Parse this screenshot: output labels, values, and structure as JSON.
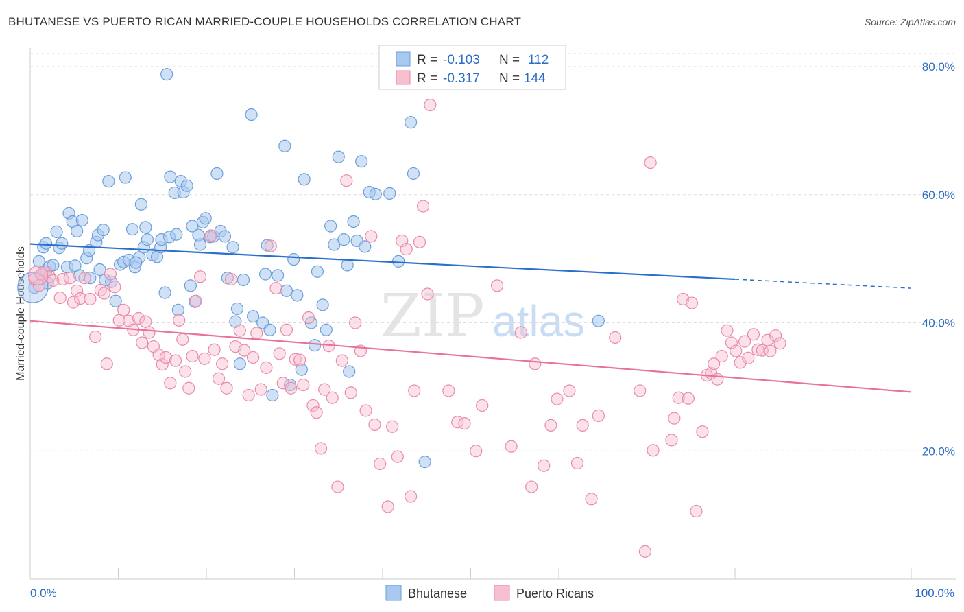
{
  "title": "BHUTANESE VS PUERTO RICAN MARRIED-COUPLE HOUSEHOLDS CORRELATION CHART",
  "source": "Source: ZipAtlas.com",
  "watermark": {
    "zip": "ZIP",
    "atlas": "atlas"
  },
  "colors": {
    "blue_fill": "#a9c8ef",
    "blue_stroke": "#6a9fdc",
    "blue_line": "#2b6fcc",
    "pink_fill": "#f7bfd0",
    "pink_stroke": "#ea8aaa",
    "pink_line": "#e8729b",
    "grid": "#dddddd",
    "axis_text": "#2b6cc4"
  },
  "legend": {
    "rows": [
      {
        "r_label": "R =",
        "r_value": "-0.103",
        "n_label": "N =",
        "n_value": "112"
      },
      {
        "r_label": "R =",
        "r_value": "-0.317",
        "n_label": "N =",
        "n_value": "144"
      }
    ]
  },
  "bottom_legend": [
    "Bhutanese",
    "Puerto Ricans"
  ],
  "chart_data": {
    "type": "scatter",
    "xlabel": "",
    "ylabel": "Married-couple Households",
    "xlim": [
      0,
      100
    ],
    "ylim": [
      0,
      82
    ],
    "x_tick_labels": [
      "0.0%",
      "100.0%"
    ],
    "y_tick_labels": [
      "20.0%",
      "40.0%",
      "60.0%",
      "80.0%"
    ],
    "y_ticks": [
      20,
      40,
      60,
      80
    ],
    "grid": true,
    "legend_placement": "top-center",
    "series": [
      {
        "name": "Bhutanese",
        "trend": {
          "x0": 0,
          "y0": 52.3,
          "x1": 80,
          "y1": 46.8,
          "dash_to_x": 100,
          "dash_to_y": 45.4
        },
        "points": [
          [
            0.5,
            45.5
          ],
          [
            1.0,
            49.6
          ],
          [
            1.2,
            47.5
          ],
          [
            1.5,
            51.8
          ],
          [
            1.8,
            52.4
          ],
          [
            2.2,
            48.8
          ],
          [
            2.6,
            49.0
          ],
          [
            3.0,
            54.2
          ],
          [
            3.3,
            51.7
          ],
          [
            3.6,
            52.4
          ],
          [
            4.2,
            48.7
          ],
          [
            4.4,
            57.1
          ],
          [
            4.8,
            55.8
          ],
          [
            5.1,
            48.9
          ],
          [
            5.3,
            54.3
          ],
          [
            5.6,
            47.4
          ],
          [
            5.9,
            56.0
          ],
          [
            6.4,
            50.1
          ],
          [
            6.7,
            51.3
          ],
          [
            7.5,
            52.6
          ],
          [
            7.7,
            53.7
          ],
          [
            7.9,
            48.3
          ],
          [
            8.3,
            54.5
          ],
          [
            8.5,
            46.7
          ],
          [
            8.9,
            62.1
          ],
          [
            9.2,
            46.4
          ],
          [
            9.7,
            43.4
          ],
          [
            10.2,
            49.1
          ],
          [
            10.6,
            49.5
          ],
          [
            10.8,
            62.7
          ],
          [
            11.2,
            49.8
          ],
          [
            11.6,
            54.6
          ],
          [
            11.9,
            48.7
          ],
          [
            12.4,
            50.2
          ],
          [
            12.6,
            58.5
          ],
          [
            12.9,
            51.8
          ],
          [
            13.1,
            54.9
          ],
          [
            13.3,
            53.0
          ],
          [
            13.9,
            50.6
          ],
          [
            14.4,
            50.3
          ],
          [
            14.8,
            51.8
          ],
          [
            14.9,
            53.0
          ],
          [
            15.3,
            44.7
          ],
          [
            15.5,
            78.8
          ],
          [
            15.8,
            53.4
          ],
          [
            15.9,
            62.8
          ],
          [
            16.4,
            60.3
          ],
          [
            16.6,
            53.8
          ],
          [
            16.8,
            42.0
          ],
          [
            17.1,
            62.1
          ],
          [
            17.4,
            60.4
          ],
          [
            17.8,
            61.4
          ],
          [
            18.2,
            45.8
          ],
          [
            18.4,
            55.1
          ],
          [
            18.7,
            43.3
          ],
          [
            19.1,
            53.7
          ],
          [
            19.3,
            52.2
          ],
          [
            19.6,
            55.7
          ],
          [
            19.9,
            56.3
          ],
          [
            20.4,
            53.4
          ],
          [
            20.8,
            53.5
          ],
          [
            21.2,
            63.3
          ],
          [
            21.6,
            54.3
          ],
          [
            22.1,
            53.5
          ],
          [
            22.4,
            47.0
          ],
          [
            23.0,
            51.8
          ],
          [
            23.3,
            40.2
          ],
          [
            23.5,
            42.2
          ],
          [
            23.8,
            33.6
          ],
          [
            24.2,
            46.7
          ],
          [
            25.1,
            72.5
          ],
          [
            25.3,
            41.0
          ],
          [
            26.4,
            40.0
          ],
          [
            26.7,
            47.6
          ],
          [
            26.9,
            52.1
          ],
          [
            27.2,
            38.9
          ],
          [
            27.5,
            28.7
          ],
          [
            28.1,
            47.4
          ],
          [
            28.9,
            67.6
          ],
          [
            29.1,
            45.0
          ],
          [
            29.5,
            30.3
          ],
          [
            29.9,
            49.9
          ],
          [
            30.3,
            44.3
          ],
          [
            30.8,
            32.7
          ],
          [
            31.1,
            62.4
          ],
          [
            31.9,
            40.0
          ],
          [
            32.3,
            36.5
          ],
          [
            32.6,
            48.0
          ],
          [
            33.2,
            42.8
          ],
          [
            33.6,
            38.9
          ],
          [
            34.1,
            55.1
          ],
          [
            34.5,
            52.2
          ],
          [
            35.0,
            65.9
          ],
          [
            35.6,
            53.0
          ],
          [
            36.0,
            49.0
          ],
          [
            36.2,
            32.4
          ],
          [
            36.7,
            55.8
          ],
          [
            37.1,
            52.8
          ],
          [
            37.6,
            65.2
          ],
          [
            38.0,
            51.9
          ],
          [
            38.5,
            60.4
          ],
          [
            39.2,
            60.1
          ],
          [
            40.8,
            60.2
          ],
          [
            41.8,
            49.6
          ],
          [
            43.2,
            71.3
          ],
          [
            43.5,
            63.3
          ],
          [
            44.8,
            18.3
          ],
          [
            64.5,
            40.3
          ],
          [
            1.6,
            48.0
          ],
          [
            2.0,
            46.2
          ],
          [
            6.8,
            47.0
          ],
          [
            12.0,
            49.4
          ]
        ]
      },
      {
        "name": "Puerto Ricans",
        "trend": {
          "x0": 0,
          "y0": 40.3,
          "x1": 100,
          "y1": 29.2
        },
        "points": [
          [
            0.5,
            46.8
          ],
          [
            1.0,
            45.8
          ],
          [
            1.3,
            47.6
          ],
          [
            1.8,
            48.0
          ],
          [
            2.2,
            47.2
          ],
          [
            2.6,
            46.6
          ],
          [
            3.4,
            43.9
          ],
          [
            3.7,
            46.8
          ],
          [
            4.5,
            47.0
          ],
          [
            4.9,
            43.2
          ],
          [
            5.3,
            45.0
          ],
          [
            5.7,
            43.8
          ],
          [
            6.2,
            47.0
          ],
          [
            6.8,
            43.7
          ],
          [
            7.4,
            37.8
          ],
          [
            8.0,
            45.1
          ],
          [
            8.4,
            44.6
          ],
          [
            8.7,
            33.6
          ],
          [
            9.1,
            47.6
          ],
          [
            9.6,
            45.6
          ],
          [
            10.1,
            40.4
          ],
          [
            10.6,
            42.0
          ],
          [
            11.2,
            40.3
          ],
          [
            11.7,
            38.9
          ],
          [
            12.3,
            40.7
          ],
          [
            12.7,
            36.9
          ],
          [
            13.1,
            40.2
          ],
          [
            13.5,
            38.5
          ],
          [
            14.0,
            36.3
          ],
          [
            14.6,
            35.0
          ],
          [
            15.0,
            33.5
          ],
          [
            15.4,
            34.6
          ],
          [
            15.9,
            30.6
          ],
          [
            16.5,
            34.1
          ],
          [
            16.9,
            40.4
          ],
          [
            17.3,
            37.4
          ],
          [
            17.6,
            32.4
          ],
          [
            18.0,
            29.8
          ],
          [
            18.4,
            34.8
          ],
          [
            18.8,
            43.4
          ],
          [
            19.3,
            47.2
          ],
          [
            19.8,
            34.4
          ],
          [
            20.5,
            53.6
          ],
          [
            20.9,
            35.8
          ],
          [
            21.4,
            31.3
          ],
          [
            21.8,
            33.6
          ],
          [
            22.3,
            29.8
          ],
          [
            22.8,
            46.8
          ],
          [
            23.3,
            36.3
          ],
          [
            23.8,
            38.8
          ],
          [
            24.3,
            35.7
          ],
          [
            24.8,
            28.7
          ],
          [
            25.3,
            34.6
          ],
          [
            25.7,
            38.4
          ],
          [
            26.2,
            29.6
          ],
          [
            26.8,
            33.0
          ],
          [
            27.3,
            52.0
          ],
          [
            27.9,
            45.4
          ],
          [
            28.3,
            35.2
          ],
          [
            28.7,
            30.6
          ],
          [
            29.1,
            38.9
          ],
          [
            29.6,
            29.8
          ],
          [
            30.1,
            34.3
          ],
          [
            30.6,
            34.2
          ],
          [
            31.0,
            30.3
          ],
          [
            31.6,
            40.8
          ],
          [
            32.1,
            27.1
          ],
          [
            32.5,
            26.0
          ],
          [
            33.0,
            20.4
          ],
          [
            33.4,
            29.6
          ],
          [
            33.9,
            36.4
          ],
          [
            34.3,
            28.3
          ],
          [
            34.9,
            14.4
          ],
          [
            35.4,
            34.1
          ],
          [
            35.9,
            62.2
          ],
          [
            36.4,
            29.1
          ],
          [
            36.9,
            40.0
          ],
          [
            37.5,
            35.6
          ],
          [
            38.1,
            26.3
          ],
          [
            38.7,
            53.5
          ],
          [
            39.1,
            24.1
          ],
          [
            39.7,
            18.0
          ],
          [
            40.6,
            11.3
          ],
          [
            41.1,
            23.8
          ],
          [
            41.7,
            19.1
          ],
          [
            42.2,
            52.8
          ],
          [
            42.7,
            51.5
          ],
          [
            43.2,
            12.9
          ],
          [
            43.6,
            29.4
          ],
          [
            44.2,
            52.6
          ],
          [
            44.6,
            58.2
          ],
          [
            45.1,
            44.5
          ],
          [
            45.4,
            74.0
          ],
          [
            47.5,
            29.4
          ],
          [
            48.5,
            24.5
          ],
          [
            49.3,
            24.3
          ],
          [
            50.6,
            20.0
          ],
          [
            51.3,
            27.1
          ],
          [
            53.0,
            45.8
          ],
          [
            54.6,
            20.7
          ],
          [
            55.7,
            38.5
          ],
          [
            56.9,
            14.4
          ],
          [
            57.3,
            33.6
          ],
          [
            58.3,
            17.7
          ],
          [
            59.1,
            24.0
          ],
          [
            59.8,
            28.1
          ],
          [
            61.2,
            29.4
          ],
          [
            62.1,
            18.1
          ],
          [
            62.7,
            24.0
          ],
          [
            63.7,
            12.5
          ],
          [
            64.5,
            25.5
          ],
          [
            66.4,
            37.7
          ],
          [
            69.2,
            29.4
          ],
          [
            69.8,
            4.3
          ],
          [
            70.4,
            65.0
          ],
          [
            70.7,
            20.1
          ],
          [
            72.8,
            21.7
          ],
          [
            73.1,
            25.1
          ],
          [
            73.6,
            28.3
          ],
          [
            74.1,
            43.7
          ],
          [
            74.7,
            28.2
          ],
          [
            75.1,
            43.1
          ],
          [
            75.6,
            10.6
          ],
          [
            76.3,
            23.0
          ],
          [
            76.8,
            31.8
          ],
          [
            77.3,
            32.1
          ],
          [
            77.6,
            33.6
          ],
          [
            78.0,
            31.2
          ],
          [
            78.5,
            34.8
          ],
          [
            79.1,
            38.8
          ],
          [
            79.6,
            36.9
          ],
          [
            80.1,
            35.6
          ],
          [
            80.6,
            33.8
          ],
          [
            81.1,
            37.1
          ],
          [
            81.5,
            34.5
          ],
          [
            82.1,
            38.2
          ],
          [
            82.6,
            35.8
          ],
          [
            83.1,
            35.7
          ],
          [
            83.7,
            37.3
          ],
          [
            84.0,
            35.6
          ],
          [
            84.6,
            38.0
          ],
          [
            85.1,
            36.8
          ]
        ]
      }
    ]
  }
}
